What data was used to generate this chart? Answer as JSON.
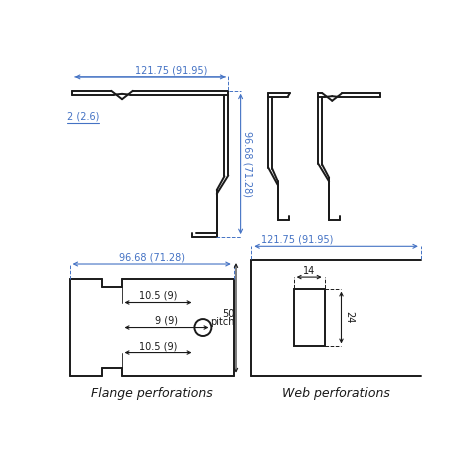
{
  "bg_color": "#ffffff",
  "line_color": "#1a1a1a",
  "dim_color": "#4472c4",
  "lw": 1.4,
  "afs": 7.0,
  "lfs": 9.0,
  "top_left_label": "121.75 (91.95)",
  "top_left_height_label": "96.68 (71.28)",
  "top_left_thickness_label": "2 (2.6)",
  "bottom_left_width_label": "96.68 (71.28)",
  "bottom_left_dim1": "10.5 (9)",
  "bottom_left_dim2": "9 (9)",
  "bottom_left_dim3": "10.5 (9)",
  "bottom_left_caption": "Flange perforations",
  "bottom_right_width_label": "121.75 (91.95)",
  "bottom_right_dim1": "14",
  "bottom_right_dim2": "24",
  "bottom_right_dim3": "50",
  "bottom_right_dim4": "pitch",
  "bottom_right_caption": "Web perforations"
}
